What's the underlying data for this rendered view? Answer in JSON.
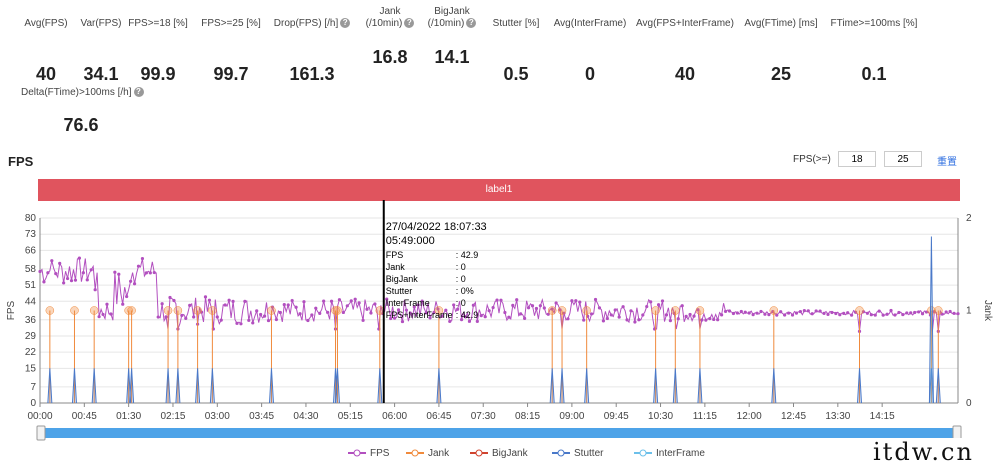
{
  "metrics": [
    {
      "label": [
        "Avg(FPS)"
      ],
      "value": "40",
      "cx": 46,
      "help": false
    },
    {
      "label": [
        "Var(FPS)"
      ],
      "value": "34.1",
      "cx": 101,
      "help": false
    },
    {
      "label": [
        "FPS>=18 [%]"
      ],
      "value": "99.9",
      "cx": 158,
      "help": false
    },
    {
      "label": [
        "FPS>=25 [%]"
      ],
      "value": "99.7",
      "cx": 231,
      "help": false
    },
    {
      "label": [
        "Drop(FPS) [/h]"
      ],
      "value": "161.3",
      "cx": 312,
      "help": true
    },
    {
      "label": [
        "Jank",
        "(/10min)"
      ],
      "value": "16.8",
      "cx": 390,
      "help": true
    },
    {
      "label": [
        "BigJank",
        "(/10min)"
      ],
      "value": "14.1",
      "cx": 452,
      "help": true
    },
    {
      "label": [
        "Stutter [%]"
      ],
      "value": "0.5",
      "cx": 516,
      "help": false
    },
    {
      "label": [
        "Avg(InterFrame)"
      ],
      "value": "0",
      "cx": 590,
      "help": false
    },
    {
      "label": [
        "Avg(FPS+InterFrame)"
      ],
      "value": "40",
      "cx": 685,
      "help": false
    },
    {
      "label": [
        "Avg(FTime) [ms]"
      ],
      "value": "25",
      "cx": 781,
      "help": false
    },
    {
      "label": [
        "FTime>=100ms [%]"
      ],
      "value": "0.1",
      "cx": 874,
      "help": false
    },
    {
      "label": [
        "Delta(FTime)>100ms [/h]"
      ],
      "value": "76.6",
      "cx": 81,
      "help": true,
      "row": 2
    }
  ],
  "chart": {
    "title": "FPS",
    "filter_label": "FPS(>=)",
    "filter_values": [
      "18",
      "25"
    ],
    "reset_label": "重置",
    "label_bar": "label1"
  },
  "tooltip": {
    "datetime": "27/04/2022 18:07:33",
    "elapsed": "05:49:000",
    "rows": [
      {
        "k": "FPS",
        "v": ": 42.9"
      },
      {
        "k": "Jank",
        "v": ": 0"
      },
      {
        "k": "BigJank",
        "v": ": 0"
      },
      {
        "k": "Stutter",
        "v": ": 0%"
      },
      {
        "k": "InterFrame",
        "v": ": 0"
      },
      {
        "k": "FPS+InterFrame",
        "v": ": 42.9"
      }
    ]
  },
  "chart_data": {
    "type": "line",
    "ylabel": "FPS",
    "y2label": "Jank",
    "ylim": [
      0,
      80
    ],
    "y2lim": [
      0,
      2
    ],
    "y_ticks": [
      0,
      7,
      15,
      22,
      29,
      36,
      44,
      51,
      58,
      66,
      73,
      80
    ],
    "y2_ticks": [
      0,
      1,
      2
    ],
    "x_ticks": [
      "00:00",
      "00:45",
      "01:30",
      "02:15",
      "03:00",
      "03:45",
      "04:30",
      "05:15",
      "06:00",
      "06:45",
      "07:30",
      "08:15",
      "09:00",
      "09:45",
      "10:30",
      "11:15",
      "12:00",
      "12:45",
      "13:30",
      "14:15"
    ],
    "x_range_seconds": [
      0,
      932
    ],
    "cursor_seconds": 349,
    "fps_segments": [
      {
        "t": [
          0,
          60
        ],
        "base": 57,
        "amp": 6
      },
      {
        "t": [
          60,
          75
        ],
        "base": 40,
        "amp": 5
      },
      {
        "t": [
          75,
          90
        ],
        "base": 48,
        "amp": 10
      },
      {
        "t": [
          90,
          120
        ],
        "base": 57,
        "amp": 6
      },
      {
        "t": [
          120,
          240
        ],
        "base": 40,
        "amp": 6
      },
      {
        "t": [
          240,
          520
        ],
        "base": 40,
        "amp": 5
      },
      {
        "t": [
          520,
          700
        ],
        "base": 40,
        "amp": 5
      },
      {
        "t": [
          700,
          932
        ],
        "base": 39,
        "amp": 1
      }
    ],
    "jank_events": [
      10,
      35,
      55,
      90,
      93,
      130,
      140,
      160,
      175,
      235,
      300,
      302,
      345,
      405,
      520,
      530,
      555,
      625,
      645,
      670,
      745,
      832,
      905,
      912
    ],
    "stutter_peak": {
      "t": 905,
      "value": 1.8
    },
    "series": [
      {
        "name": "FPS",
        "color": "#b24fbf"
      },
      {
        "name": "Jank",
        "color": "#f08a3c"
      },
      {
        "name": "BigJank",
        "color": "#d0442f"
      },
      {
        "name": "Stutter",
        "color": "#4a79c9"
      },
      {
        "name": "InterFrame",
        "color": "#6cc0ea"
      }
    ]
  },
  "watermark": "itdw.cn"
}
